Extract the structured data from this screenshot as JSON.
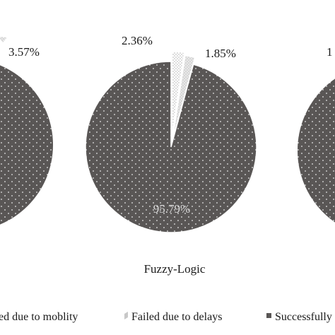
{
  "chart_data": [
    {
      "type": "pie",
      "title": "",
      "categories": [
        "Failed due to moblity",
        "Failed due to delays",
        "Successfully"
      ],
      "values": [
        null,
        null,
        null
      ],
      "labels": [
        "",
        "3.57%",
        ""
      ]
    },
    {
      "type": "pie",
      "title": "Fuzzy-Logic",
      "categories": [
        "Failed due to moblity",
        "Failed due to delays",
        "Successfully"
      ],
      "values": [
        2.36,
        1.85,
        95.79
      ],
      "labels": [
        "2.36%",
        "1.85%",
        "95.79%"
      ]
    },
    {
      "type": "pie",
      "title": "",
      "categories": [
        "Failed due to moblity",
        "Failed due to delays",
        "Successfully"
      ],
      "values": [
        null,
        null,
        null
      ],
      "labels": [
        "",
        "1",
        ""
      ]
    }
  ],
  "legend": [
    {
      "label": "ed due to moblity",
      "color": "#ffffff"
    },
    {
      "label": "Failed due to delays",
      "color": "#c8c8c8"
    },
    {
      "label": "Successfully",
      "color": "#595655"
    }
  ],
  "colors": {
    "mobility": "#ffffff",
    "delays": "#d2d2d2",
    "success": "#595655",
    "dot": "#e8e8e8"
  }
}
